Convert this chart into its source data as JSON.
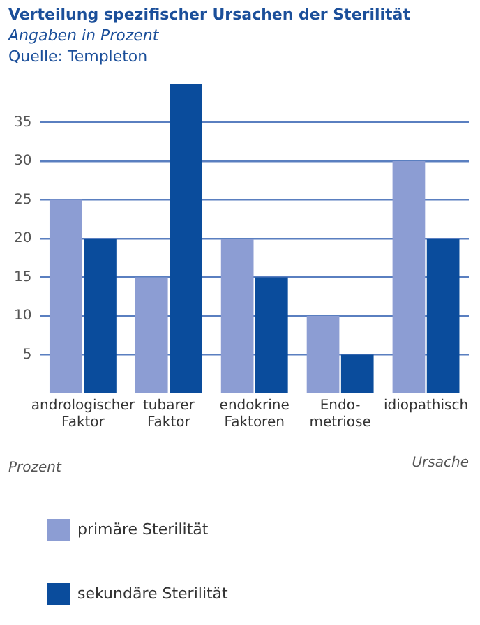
{
  "chart_data": {
    "type": "bar",
    "title": "Verteilung spezifischer Ursachen der Sterilität",
    "subtitle": "Angaben in Prozent",
    "annotations": [
      "Quelle: Templeton"
    ],
    "xlabel": "Ursache",
    "ylabel": "Prozent",
    "categories": [
      "andrologischer\nFaktor",
      "tubarer\nFaktor",
      "endokrine\nFaktoren",
      "Endo-\nmetriose",
      "idiopathisch"
    ],
    "series": [
      {
        "name": "primäre Sterilität",
        "color": "#8c9dd3",
        "values": [
          25,
          15,
          20,
          10,
          30
        ]
      },
      {
        "name": "sekundäre Sterilität",
        "color": "#0a4c9c",
        "values": [
          20,
          40,
          15,
          5,
          20
        ]
      }
    ],
    "ylim": [
      0,
      40
    ],
    "yticks": [
      5,
      10,
      15,
      20,
      25,
      30,
      35
    ],
    "grid": "y",
    "legend": "bottom"
  }
}
